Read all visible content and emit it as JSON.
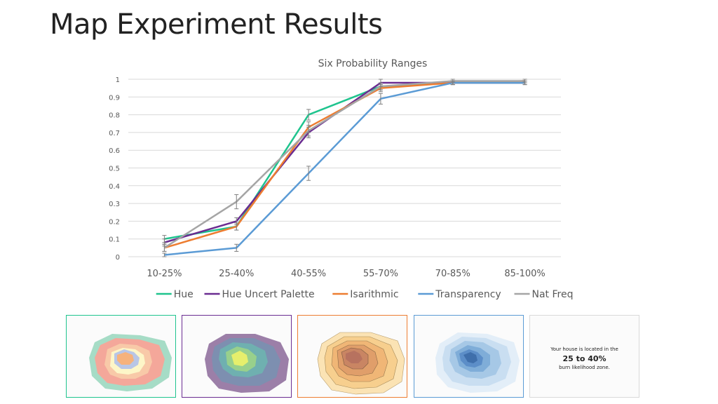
{
  "slide": {
    "title": "Map Experiment Results"
  },
  "chart_data": {
    "type": "line",
    "title": "Six Probability Ranges",
    "categories": [
      "10-25%",
      "25-40%",
      "40-55%",
      "55-70%",
      "70-85%",
      "85-100%"
    ],
    "ylim": [
      0,
      1
    ],
    "yticks": [
      0,
      0.1,
      0.2,
      0.3,
      0.4,
      0.5,
      0.6,
      0.7,
      0.8,
      0.9,
      1
    ],
    "ytick_labels": [
      "0",
      "0.1",
      "0.2",
      "0.3",
      "0.4",
      "0.5",
      "0.6",
      "0.7",
      "0.8",
      "0.9",
      "1"
    ],
    "grid": true,
    "legend": "bottom",
    "series": [
      {
        "name": "Hue",
        "color": "#1fc48e",
        "values": [
          0.1,
          0.17,
          0.8,
          0.96,
          0.98,
          0.98
        ],
        "errors": [
          0.02,
          0.02,
          0.03,
          0.02,
          0.01,
          0.01
        ]
      },
      {
        "name": "Hue Uncert Palette",
        "color": "#6a2c91",
        "values": [
          0.08,
          0.2,
          0.7,
          0.98,
          0.98,
          0.98
        ],
        "errors": [
          0.02,
          0.02,
          0.03,
          0.02,
          0.01,
          0.01
        ]
      },
      {
        "name": "Isarithmic",
        "color": "#ed7d31",
        "values": [
          0.05,
          0.17,
          0.73,
          0.95,
          0.98,
          0.99
        ],
        "errors": [
          0.02,
          0.02,
          0.03,
          0.02,
          0.01,
          0.01
        ]
      },
      {
        "name": "Transparency",
        "color": "#5b9bd5",
        "values": [
          0.01,
          0.05,
          0.47,
          0.89,
          0.98,
          0.98
        ],
        "errors": [
          0.01,
          0.02,
          0.04,
          0.03,
          0.01,
          0.01
        ]
      },
      {
        "name": "Nat Freq",
        "color": "#a5a5a5",
        "values": [
          0.05,
          0.31,
          0.71,
          0.96,
          0.99,
          0.99
        ],
        "errors": [
          0.02,
          0.04,
          0.03,
          0.02,
          0.01,
          0.01
        ]
      }
    ]
  },
  "thumbnails": [
    {
      "name": "Hue",
      "border": "#1fc48e"
    },
    {
      "name": "Hue Uncert Palette",
      "border": "#6a2c91"
    },
    {
      "name": "Isarithmic",
      "border": "#ed7d31"
    },
    {
      "name": "Transparency",
      "border": "#5b9bd5"
    },
    {
      "name": "Nat Freq",
      "border": "#d9d9d9",
      "line1": "Your house is located in the",
      "line2": "25 to 40%",
      "line3": "burn likelihood zone."
    }
  ]
}
